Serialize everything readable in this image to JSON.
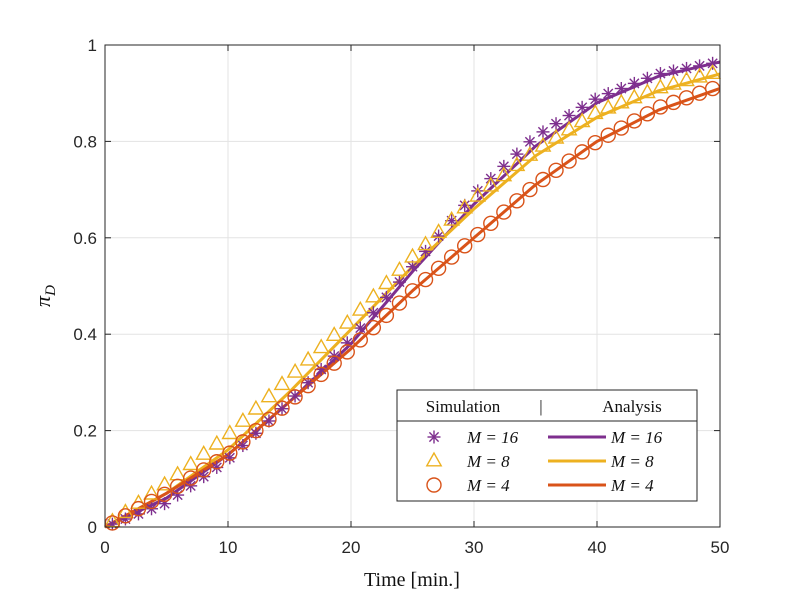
{
  "chart_data": {
    "type": "line",
    "xlabel": "Time [min.]",
    "ylabel": {
      "symbol": "π",
      "subscript": "D"
    },
    "xlim": [
      0,
      50
    ],
    "ylim": [
      0,
      1
    ],
    "xticks": [
      0,
      10,
      20,
      30,
      40,
      50
    ],
    "yticks": [
      0,
      0.2,
      0.4,
      0.6,
      0.8,
      1
    ],
    "xtick_labels": [
      "0",
      "10",
      "20",
      "30",
      "40",
      "50"
    ],
    "ytick_labels": [
      "0",
      "0.2",
      "0.4",
      "0.6",
      "0.8",
      "1"
    ],
    "grid": true,
    "legend": {
      "placement": "bottom-right",
      "header_left": "Simulation",
      "header_sep": "|",
      "header_right": "Analysis",
      "entries": [
        {
          "marker": "asterisk",
          "label_sim": "M = 16",
          "label_ana": "M = 16"
        },
        {
          "marker": "triangle",
          "label_sim": "M = 8",
          "label_ana": "M = 8"
        },
        {
          "marker": "circle",
          "label_sim": "M = 4",
          "label_ana": "M = 4"
        }
      ]
    },
    "series": [
      {
        "name": "Simulation M = 16",
        "kind": "markers",
        "marker": "asterisk",
        "color": "#7E2F8E",
        "x": [
          0,
          5,
          10,
          15,
          20,
          25,
          30,
          35,
          40,
          45,
          50
        ],
        "y": [
          0.0,
          0.05,
          0.14,
          0.26,
          0.39,
          0.54,
          0.69,
          0.81,
          0.89,
          0.94,
          0.965
        ]
      },
      {
        "name": "Simulation M = 8",
        "kind": "markers",
        "marker": "triangle",
        "color": "#EDB120",
        "x": [
          0,
          5,
          10,
          15,
          20,
          25,
          30,
          35,
          40,
          45,
          50
        ],
        "y": [
          0.0,
          0.09,
          0.19,
          0.31,
          0.43,
          0.56,
          0.68,
          0.78,
          0.86,
          0.91,
          0.945
        ]
      },
      {
        "name": "Simulation M = 4",
        "kind": "markers",
        "marker": "circle",
        "color": "#D95319",
        "x": [
          0,
          5,
          10,
          15,
          20,
          25,
          30,
          35,
          40,
          45,
          50
        ],
        "y": [
          0.0,
          0.07,
          0.15,
          0.26,
          0.37,
          0.49,
          0.6,
          0.71,
          0.8,
          0.87,
          0.915
        ]
      },
      {
        "name": "Analysis M = 16",
        "kind": "line",
        "color": "#7E2F8E",
        "x": [
          0,
          5,
          10,
          15,
          20,
          25,
          30,
          35,
          40,
          45,
          50
        ],
        "y": [
          0.0,
          0.06,
          0.15,
          0.26,
          0.38,
          0.53,
          0.67,
          0.79,
          0.88,
          0.935,
          0.965
        ]
      },
      {
        "name": "Analysis M = 8",
        "kind": "line",
        "color": "#EDB120",
        "x": [
          0,
          5,
          10,
          15,
          20,
          25,
          30,
          35,
          40,
          45,
          50
        ],
        "y": [
          0.0,
          0.07,
          0.16,
          0.28,
          0.41,
          0.54,
          0.66,
          0.77,
          0.85,
          0.905,
          0.94
        ]
      },
      {
        "name": "Analysis M = 4",
        "kind": "line",
        "color": "#D95319",
        "x": [
          0,
          5,
          10,
          15,
          20,
          25,
          30,
          35,
          40,
          45,
          50
        ],
        "y": [
          0.0,
          0.07,
          0.15,
          0.26,
          0.37,
          0.49,
          0.6,
          0.71,
          0.8,
          0.865,
          0.91
        ]
      }
    ]
  }
}
